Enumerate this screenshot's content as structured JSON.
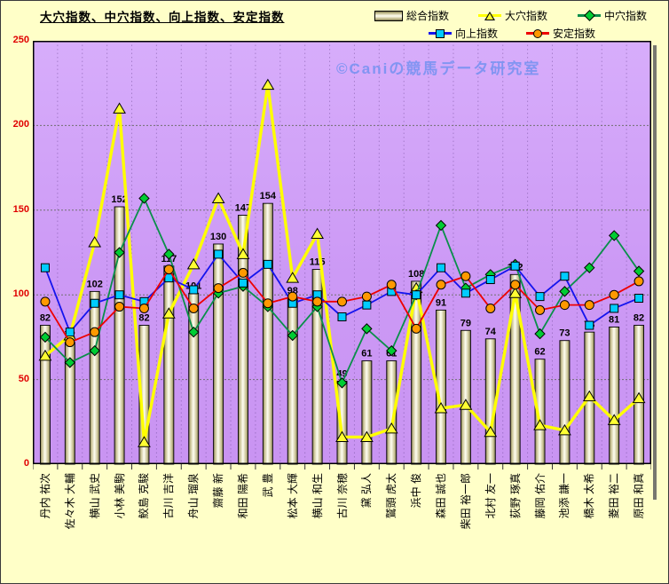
{
  "title": "大穴指数、中穴指数、向上指数、安定指数",
  "watermark": "©Caniの競馬データ研究室",
  "colors": {
    "page_background": "#ffffc8",
    "plot_background": "#cc99f5",
    "bar_edge": "#7d7850",
    "bar_center": "#fffef2",
    "ooana_line": "#ffff00",
    "chuana_line": "#0a8f4a",
    "koujou_line": "#1414ee",
    "antei_line": "#ee0000",
    "ooana_marker": "#ffff33",
    "chuana_marker": "#00cc33",
    "koujou_marker": "#00ccff",
    "antei_marker": "#ff9900",
    "axis_label": "#e00000"
  },
  "chart_data": {
    "type": "combo",
    "title": "大穴指数、中穴指数、向上指数、安定指数",
    "legend_position": "top-right",
    "grid": true,
    "ylim": [
      0,
      250
    ],
    "y_ticks": [
      0,
      50,
      100,
      150,
      200,
      250
    ],
    "categories": [
      "丹内 祐次",
      "佐々木 大輔",
      "横山 武史",
      "小林 美駒",
      "鮫島 克駿",
      "古川 吉洋",
      "舟山 瑠泉",
      "齋藤 新",
      "和田 陽希",
      "武 豊",
      "松本 大輝",
      "横山 和生",
      "古川 奈穂",
      "黛 弘人",
      "鷲頭 虎太",
      "浜中 俊",
      "森田 誠也",
      "柴田 裕一郎",
      "北村 友一",
      "荻野 琢真",
      "藤岡 佑介",
      "池添 謙一",
      "橋木 太希",
      "菱田 裕二",
      "原田 和真"
    ],
    "bar_series": {
      "name": "総合指数",
      "values": [
        82,
        72,
        102,
        152,
        82,
        117,
        101,
        130,
        147,
        154,
        98,
        115,
        49,
        61,
        61,
        108,
        91,
        79,
        74,
        112,
        62,
        73,
        78,
        81,
        82
      ]
    },
    "line_series": [
      {
        "name": "大穴指数",
        "marker": "triangle",
        "values": [
          64,
          76,
          131,
          210,
          13,
          89,
          118,
          157,
          124,
          224,
          110,
          136,
          16,
          16,
          21,
          104,
          33,
          35,
          19,
          101,
          23,
          20,
          40,
          26,
          39
        ]
      },
      {
        "name": "中穴指数",
        "marker": "diamond",
        "values": [
          75,
          60,
          67,
          125,
          157,
          124,
          78,
          101,
          105,
          93,
          76,
          93,
          48,
          80,
          67,
          100,
          141,
          104,
          112,
          118,
          77,
          102,
          116,
          135,
          114
        ]
      },
      {
        "name": "向上指数",
        "marker": "square",
        "values": [
          116,
          78,
          95,
          100,
          96,
          110,
          103,
          124,
          107,
          118,
          95,
          100,
          87,
          94,
          102,
          100,
          116,
          101,
          109,
          117,
          99,
          111,
          82,
          92,
          98
        ]
      },
      {
        "name": "安定指数",
        "marker": "circle",
        "values": [
          96,
          72,
          78,
          93,
          92,
          115,
          92,
          104,
          113,
          95,
          99,
          96,
          96,
          99,
          106,
          80,
          106,
          111,
          92,
          106,
          91,
          94,
          94,
          100,
          108
        ]
      }
    ]
  }
}
